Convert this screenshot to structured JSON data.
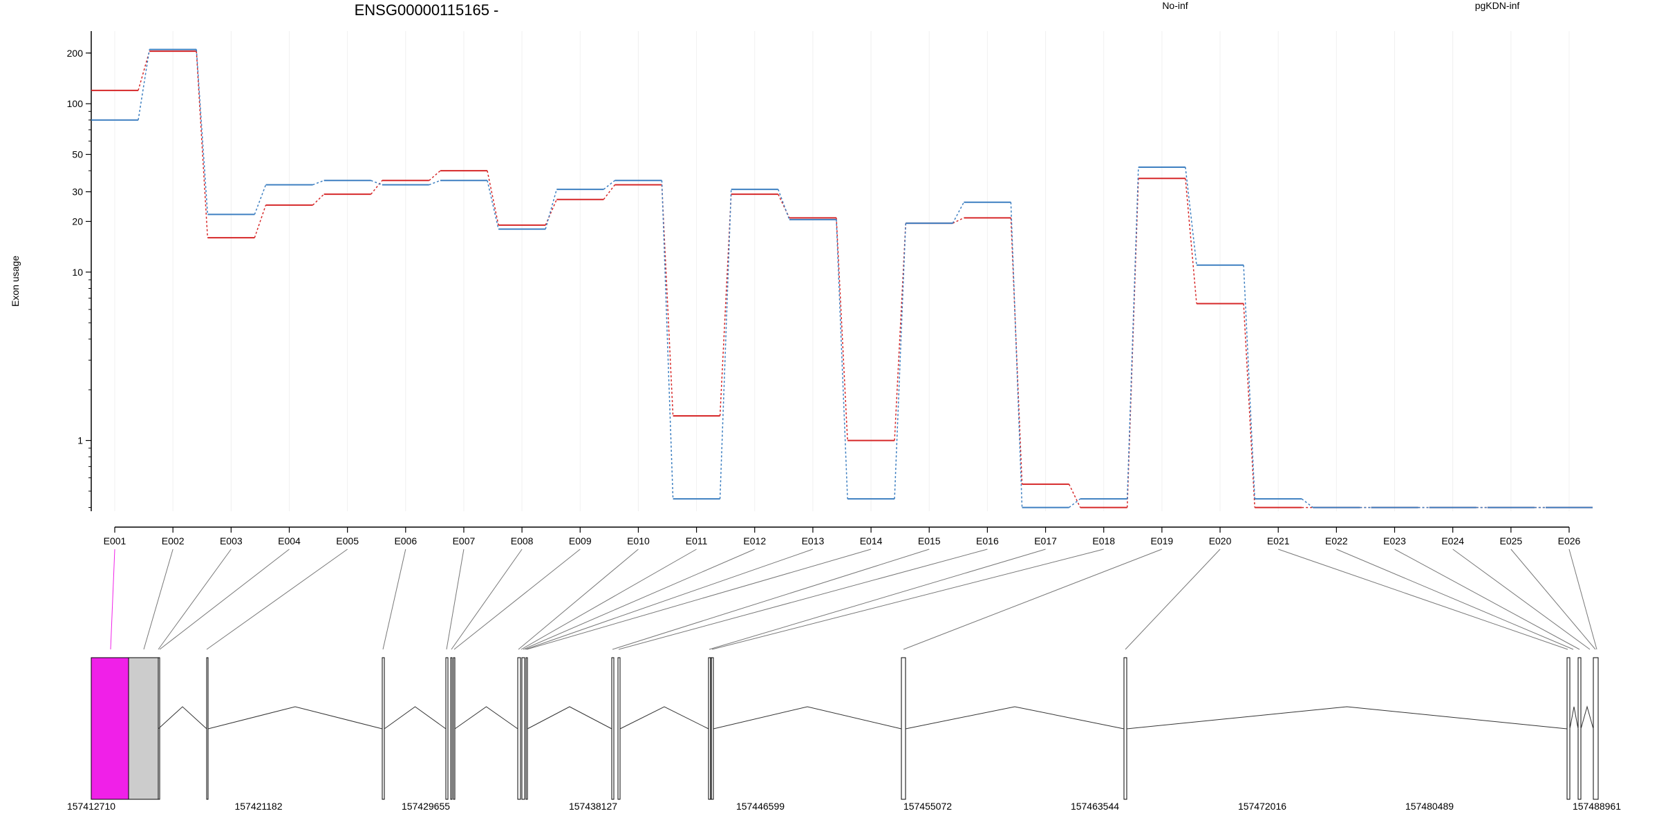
{
  "chart_data": {
    "type": "line",
    "title": "ENSG00000115165 -",
    "ylabel": "Exon usage",
    "xlabel": "",
    "yscale": "log",
    "ylim": [
      0.38,
      270
    ],
    "yticks": [
      1,
      10,
      20,
      30,
      50,
      100,
      200
    ],
    "grid": "vertical",
    "legend": "top-right",
    "categories": [
      "E001",
      "E002",
      "E003",
      "E004",
      "E005",
      "E006",
      "E007",
      "E008",
      "E009",
      "E010",
      "E011",
      "E012",
      "E013",
      "E014",
      "E015",
      "E016",
      "E017",
      "E018",
      "E019",
      "E020",
      "E021",
      "E022",
      "E023",
      "E024",
      "E025",
      "E026"
    ],
    "series": [
      {
        "name": "No-inf",
        "color": "#d62728",
        "values": [
          120,
          205,
          16,
          25,
          29,
          35,
          40,
          19,
          27,
          33,
          1.4,
          29,
          21,
          1.0,
          19.5,
          21,
          0.55,
          0.4,
          36,
          6.5,
          0.4,
          0.4,
          0.4,
          0.4,
          0.4,
          0.4
        ]
      },
      {
        "name": "pgKDN-inf",
        "color": "#3d7fc1",
        "values": [
          80,
          210,
          22,
          33,
          35,
          33,
          35,
          18,
          31,
          35,
          0.45,
          31,
          20.5,
          0.45,
          19.5,
          26,
          0.4,
          0.45,
          42,
          11,
          0.45,
          0.4,
          0.4,
          0.4,
          0.4,
          0.4
        ]
      }
    ],
    "gene_model": {
      "coordinates": [
        "157412710",
        "157421182",
        "157429655",
        "157438127",
        "157446599",
        "157455072",
        "157463544",
        "157472016",
        "157480489",
        "157488961"
      ],
      "highlight_exon": "E001",
      "highlight_color": "#f020e8",
      "exon_color": "#cccccc"
    }
  }
}
